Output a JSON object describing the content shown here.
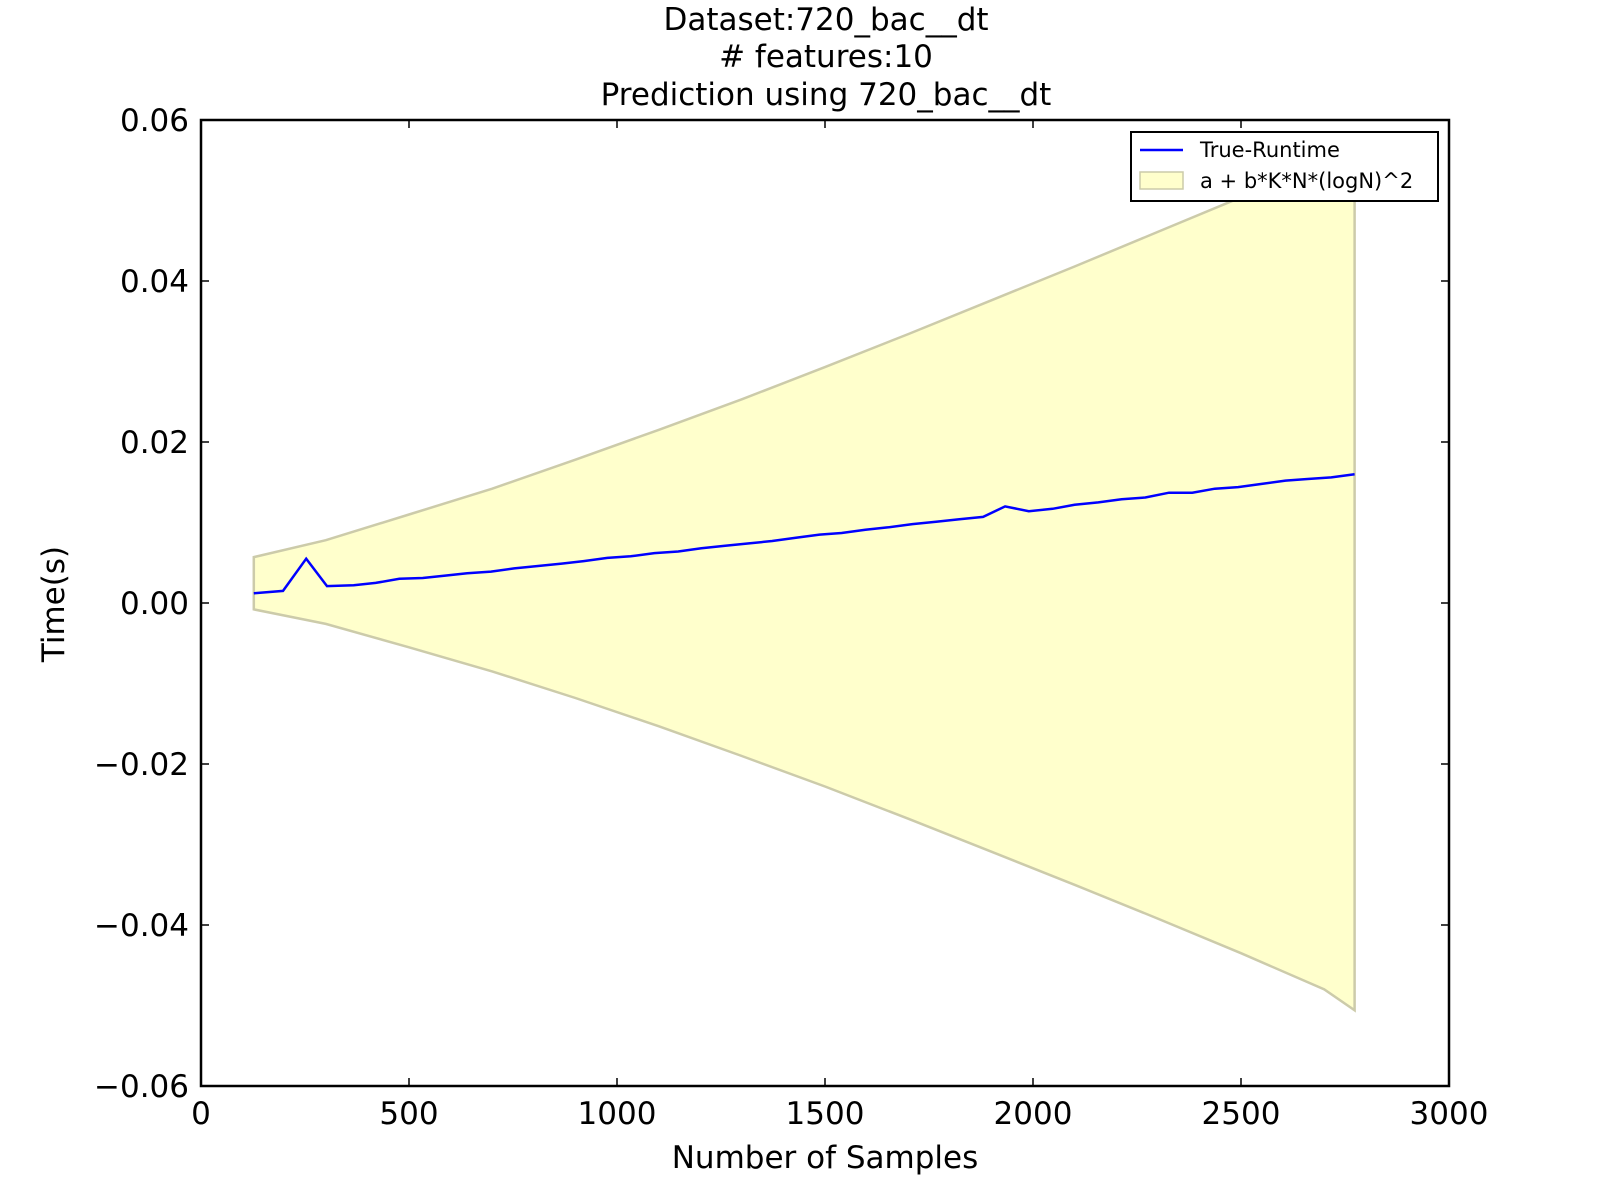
{
  "chart_data": {
    "type": "line",
    "title_lines": [
      "Dataset:720_bac__dt",
      "# features:10",
      "Prediction using 720_bac__dt"
    ],
    "xlabel": "Number of Samples",
    "ylabel": "Time(s)",
    "xlim": [
      0,
      3000
    ],
    "ylim": [
      -0.06,
      0.06
    ],
    "x_ticks": [
      0,
      500,
      1000,
      1500,
      2000,
      2500,
      3000
    ],
    "x_tick_labels": [
      "0",
      "500",
      "1000",
      "1500",
      "2000",
      "2500",
      "3000"
    ],
    "y_ticks": [
      -0.06,
      -0.04,
      -0.02,
      0.0,
      0.02,
      0.04,
      0.06
    ],
    "y_tick_labels": [
      "−0.06",
      "−0.04",
      "−0.02",
      "0.00",
      "0.02",
      "0.04",
      "0.06"
    ],
    "grid": false,
    "legend_position": "top-right",
    "series": [
      {
        "name": "True-Runtime",
        "kind": "line",
        "color": "#0000ff",
        "x": [
          127,
          197,
          253,
          303,
          367,
          420,
          477,
          533,
          587,
          640,
          697,
          753,
          810,
          867,
          920,
          977,
          1033,
          1090,
          1147,
          1203,
          1260,
          1317,
          1373,
          1430,
          1487,
          1540,
          1597,
          1653,
          1710,
          1767,
          1823,
          1880,
          1933,
          1990,
          2047,
          2100,
          2157,
          2213,
          2270,
          2327,
          2383,
          2437,
          2493,
          2550,
          2607,
          2660,
          2717,
          2773
        ],
        "y": [
          0.0012,
          0.0015,
          0.0055,
          0.0021,
          0.0022,
          0.0025,
          0.003,
          0.0031,
          0.0034,
          0.0037,
          0.0039,
          0.0043,
          0.0046,
          0.0049,
          0.0052,
          0.0056,
          0.0058,
          0.0062,
          0.0064,
          0.0068,
          0.0071,
          0.0074,
          0.0077,
          0.0081,
          0.0085,
          0.0087,
          0.0091,
          0.0094,
          0.0098,
          0.0101,
          0.0104,
          0.0107,
          0.012,
          0.0114,
          0.0117,
          0.0122,
          0.0125,
          0.0129,
          0.0131,
          0.0137,
          0.0137,
          0.0142,
          0.0144,
          0.0148,
          0.0152,
          0.0154,
          0.0156,
          0.016
        ]
      },
      {
        "name": "a + b*K*N*(logN)^2",
        "kind": "band",
        "fill_color": "#ffffcc",
        "edge_color": "#cccbaa",
        "x": [
          127,
          300,
          500,
          700,
          900,
          1100,
          1300,
          1500,
          1700,
          1900,
          2100,
          2300,
          2500,
          2700,
          2773
        ],
        "upper": [
          0.0057,
          0.0078,
          0.011,
          0.0142,
          0.0178,
          0.0215,
          0.0253,
          0.0293,
          0.0334,
          0.0376,
          0.0418,
          0.0461,
          0.0504,
          0.0549,
          0.0566
        ],
        "lower": [
          -0.0008,
          -0.0026,
          -0.0055,
          -0.0085,
          -0.0118,
          -0.0153,
          -0.019,
          -0.0228,
          -0.0268,
          -0.0309,
          -0.035,
          -0.0392,
          -0.0435,
          -0.048,
          -0.0506
        ]
      }
    ]
  }
}
